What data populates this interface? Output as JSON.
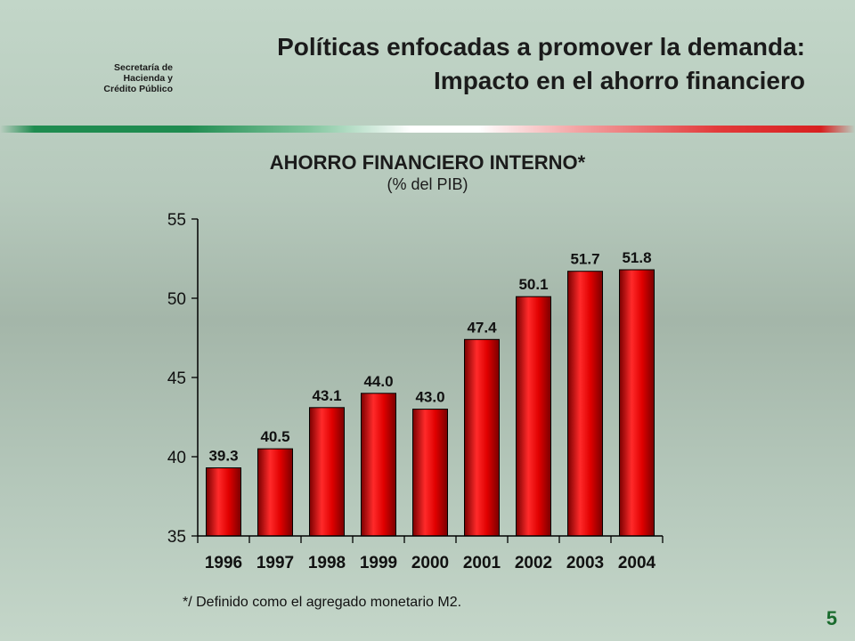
{
  "header": {
    "org_name": [
      "Secretaría de",
      "Hacienda y",
      "Crédito Público"
    ],
    "title_line1": "Políticas enfocadas a promover la demanda:",
    "title_line2": "Impacto en el ahorro financiero"
  },
  "colors": {
    "bar_fill": "#d40000",
    "bar_highlight": "#ff3a3a",
    "green_accent": "#1f8c50",
    "red_accent": "#d82020"
  },
  "chart_data": {
    "type": "bar",
    "title": "AHORRO FINANCIERO INTERNO*",
    "subtitle": "(% del PIB)",
    "categories": [
      "1996",
      "1997",
      "1998",
      "1999",
      "2000",
      "2001",
      "2002",
      "2003",
      "2004"
    ],
    "values": [
      39.3,
      40.5,
      43.1,
      44.0,
      43.0,
      47.4,
      50.1,
      51.7,
      51.8
    ],
    "value_labels": [
      "39.3",
      "40.5",
      "43.1",
      "44.0",
      "43.0",
      "47.4",
      "50.1",
      "51.7",
      "51.8"
    ],
    "ylim": [
      35,
      55
    ],
    "yticks": [
      35,
      40,
      45,
      50,
      55
    ],
    "grid": false,
    "legend": "none"
  },
  "footnote": "*/ Definido como el agregado monetario M2.",
  "page_number": "5"
}
